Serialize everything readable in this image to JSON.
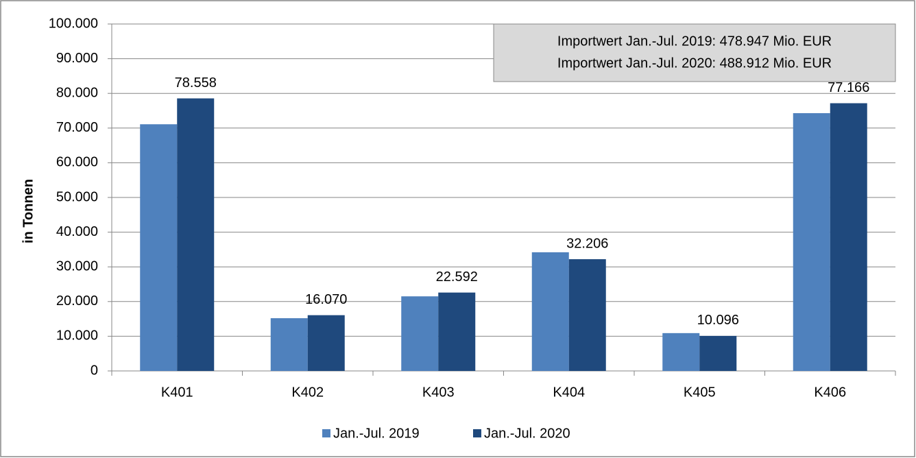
{
  "chart_data": {
    "type": "bar",
    "y_axis_label": "in Tonnen",
    "annotations": [
      "Importwert Jan.-Jul. 2019: 478.947 Mio. EUR",
      "Importwert Jan.-Jul. 2020: 488.912 Mio. EUR"
    ],
    "categories": [
      "K401",
      "K402",
      "K403",
      "K404",
      "K405",
      "K406"
    ],
    "series": [
      {
        "name": "Jan.-Jul. 2019",
        "color": "#4f81bd",
        "values": [
          71100,
          15200,
          21500,
          34200,
          10900,
          74300
        ]
      },
      {
        "name": "Jan.-Jul. 2020",
        "color": "#1f497d",
        "values": [
          78558,
          16070,
          22592,
          32206,
          10096,
          77166
        ],
        "value_labels": [
          "78.558",
          "16.070",
          "22.592",
          "32.206",
          "10.096",
          "77.166"
        ]
      }
    ],
    "ylim": [
      0,
      100000
    ],
    "yticks": [
      0,
      {
        "value": 10000,
        "label": "10.000"
      },
      {
        "value": 20000,
        "label": "20.000"
      },
      {
        "value": 30000,
        "label": "30.000"
      },
      {
        "value": 40000,
        "label": "40.000"
      },
      {
        "value": 50000,
        "label": "50.000"
      },
      {
        "value": 60000,
        "label": "60.000"
      },
      {
        "value": 70000,
        "label": "70.000"
      },
      {
        "value": 80000,
        "label": "80.000"
      },
      {
        "value": 90000,
        "label": "90.000"
      },
      {
        "value": 100000,
        "label": "100.000"
      }
    ],
    "grid": true,
    "legend": "bottom"
  }
}
